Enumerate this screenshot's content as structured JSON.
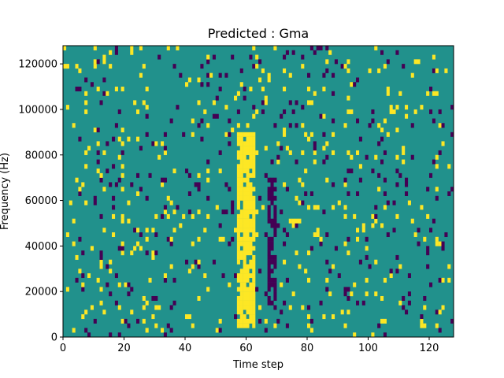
{
  "chart_data": {
    "type": "heatmap",
    "title": "Predicted : Gma",
    "xlabel": "Time step",
    "ylabel": "Frequency (Hz)",
    "xlim": [
      0,
      128
    ],
    "ylim": [
      0,
      128000
    ],
    "x_ticks": [
      0,
      20,
      40,
      60,
      80,
      100,
      120
    ],
    "y_ticks": [
      0,
      20000,
      40000,
      60000,
      80000,
      100000,
      120000
    ],
    "y_tick_labels": [
      "0",
      "20000",
      "40000",
      "60000",
      "80000",
      "100000",
      "120000"
    ],
    "grid": false,
    "colors": {
      "background_value": "#21918c",
      "high_value": "#fde725",
      "low_value": "#440154"
    },
    "n_time_steps": 128,
    "n_frequency_bins": 64,
    "dominant_band": {
      "x_range": [
        57,
        63
      ],
      "y_range": [
        4000,
        90000
      ],
      "value": "high"
    },
    "secondary_band": {
      "x_range": [
        67,
        70
      ],
      "y_range": [
        10000,
        70000
      ],
      "value": "low"
    }
  }
}
